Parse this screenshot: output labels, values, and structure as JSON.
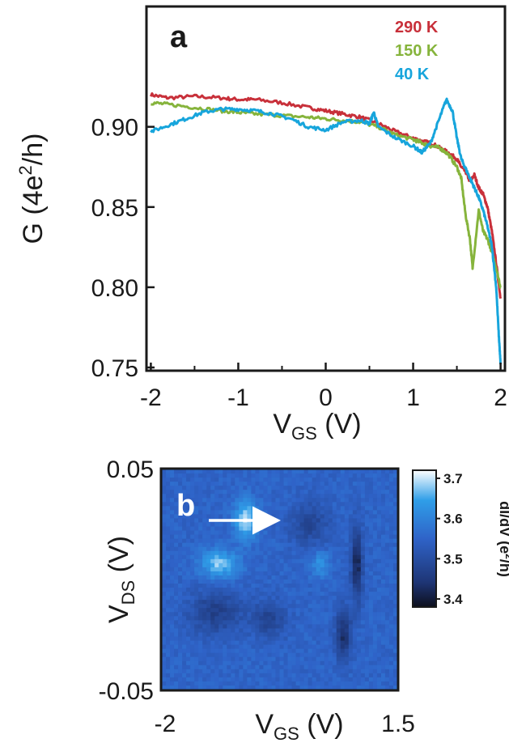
{
  "chart_data": [
    {
      "panel": "a",
      "type": "line",
      "xlabel": "V",
      "xlabel_sub": "GS",
      "xlabel_unit": " (V)",
      "ylabel": "G (4e",
      "ylabel_sup": "2",
      "ylabel_unit": "/h)",
      "xlim": [
        -2.05,
        2.05
      ],
      "ylim": [
        0.748,
        0.975
      ],
      "xticks": [
        -2,
        -1,
        0,
        1,
        2
      ],
      "xtick_labels": [
        "-2",
        "-1",
        "0",
        "1",
        "2"
      ],
      "yticks": [
        0.75,
        0.8,
        0.85,
        0.9
      ],
      "ytick_labels": [
        "0.75",
        "0.80",
        "0.85",
        "0.90"
      ],
      "grid": false,
      "legend_position": "top-right",
      "series": [
        {
          "name": "290 K",
          "color": "#c8303a",
          "x": [
            -2.0,
            -1.8,
            -1.5,
            -1.2,
            -1.0,
            -0.8,
            -0.5,
            -0.2,
            0.0,
            0.2,
            0.4,
            0.6,
            0.8,
            1.0,
            1.1,
            1.2,
            1.3,
            1.4,
            1.5,
            1.55,
            1.6,
            1.65,
            1.7,
            1.75,
            1.8,
            1.85,
            1.9,
            1.95,
            2.0
          ],
          "y": [
            0.92,
            0.918,
            0.919,
            0.918,
            0.917,
            0.917,
            0.915,
            0.912,
            0.91,
            0.908,
            0.906,
            0.902,
            0.897,
            0.893,
            0.891,
            0.89,
            0.887,
            0.884,
            0.88,
            0.875,
            0.872,
            0.866,
            0.87,
            0.862,
            0.858,
            0.85,
            0.835,
            0.815,
            0.793
          ]
        },
        {
          "name": "150 K",
          "color": "#86b43c",
          "x": [
            -2.0,
            -1.8,
            -1.5,
            -1.2,
            -1.0,
            -0.8,
            -0.5,
            -0.2,
            0.0,
            0.2,
            0.4,
            0.6,
            0.8,
            1.0,
            1.1,
            1.2,
            1.3,
            1.4,
            1.5,
            1.55,
            1.6,
            1.65,
            1.68,
            1.75,
            1.8,
            1.85,
            1.9,
            1.95,
            2.0
          ],
          "y": [
            0.915,
            0.914,
            0.912,
            0.91,
            0.909,
            0.908,
            0.907,
            0.906,
            0.905,
            0.904,
            0.903,
            0.9,
            0.895,
            0.892,
            0.89,
            0.888,
            0.887,
            0.883,
            0.875,
            0.868,
            0.845,
            0.83,
            0.812,
            0.848,
            0.835,
            0.83,
            0.822,
            0.812,
            0.8
          ]
        },
        {
          "name": "40 K",
          "color": "#17a5dc",
          "x": [
            -2.0,
            -1.8,
            -1.6,
            -1.4,
            -1.2,
            -1.0,
            -0.8,
            -0.6,
            -0.4,
            -0.2,
            0.0,
            0.2,
            0.4,
            0.5,
            0.55,
            0.6,
            0.8,
            1.0,
            1.1,
            1.2,
            1.3,
            1.38,
            1.45,
            1.5,
            1.55,
            1.6,
            1.65,
            1.7,
            1.75,
            1.8,
            1.85,
            1.9,
            1.95,
            1.98,
            2.0
          ],
          "y": [
            0.897,
            0.901,
            0.905,
            0.909,
            0.911,
            0.911,
            0.91,
            0.908,
            0.905,
            0.9,
            0.898,
            0.903,
            0.904,
            0.902,
            0.909,
            0.9,
            0.893,
            0.888,
            0.884,
            0.89,
            0.905,
            0.917,
            0.91,
            0.893,
            0.88,
            0.874,
            0.868,
            0.862,
            0.856,
            0.848,
            0.838,
            0.826,
            0.8,
            0.77,
            0.752
          ]
        }
      ]
    },
    {
      "panel": "b",
      "type": "heatmap",
      "xlabel": "V",
      "xlabel_sub": "GS",
      "xlabel_unit": " (V)",
      "ylabel": "V",
      "ylabel_sub": "DS",
      "ylabel_unit": " (V)",
      "xlim": [
        -2,
        1.5
      ],
      "ylim": [
        -0.05,
        0.05
      ],
      "xtick_labels": [
        "-2",
        "1.5"
      ],
      "ytick_labels": [
        "0.05",
        "-0.05"
      ],
      "colorbar": {
        "label": "dI/dV (e",
        "label_sup": "2",
        "label_unit": "/h)",
        "range": [
          3.38,
          3.72
        ],
        "ticks": [
          3.4,
          3.5,
          3.6,
          3.7
        ],
        "tick_labels": [
          "3.4",
          "3.5",
          "3.6",
          "3.7"
        ],
        "colors": [
          "#0d0f1c",
          "#1e3575",
          "#2f63c8",
          "#2f9ee8",
          "#ffffff"
        ]
      },
      "background_value": 3.55,
      "features": [
        {
          "type": "peak",
          "x": -0.75,
          "y": 0.027,
          "value": 3.7,
          "sx": 0.12,
          "sy": 0.006
        },
        {
          "type": "peak",
          "x": -1.15,
          "y": 0.007,
          "value": 3.68,
          "sx": 0.2,
          "sy": 0.0045
        },
        {
          "type": "peak",
          "x": 0.35,
          "y": 0.007,
          "value": 3.63,
          "sx": 0.1,
          "sy": 0.004
        },
        {
          "type": "dip",
          "x": 0.9,
          "y": 0.007,
          "value": 3.42,
          "sx": 0.06,
          "sy": 0.012
        },
        {
          "type": "dip",
          "x": 0.7,
          "y": -0.025,
          "value": 3.43,
          "sx": 0.08,
          "sy": 0.008
        },
        {
          "type": "dip",
          "x": -1.2,
          "y": -0.015,
          "value": 3.47,
          "sx": 0.28,
          "sy": 0.007
        },
        {
          "type": "dip",
          "x": 0.2,
          "y": 0.025,
          "value": 3.48,
          "sx": 0.2,
          "sy": 0.007
        },
        {
          "type": "dip",
          "x": -0.4,
          "y": -0.018,
          "value": 3.48,
          "sx": 0.18,
          "sy": 0.006
        }
      ],
      "annotation": "arrow pointing to bright peak"
    }
  ]
}
